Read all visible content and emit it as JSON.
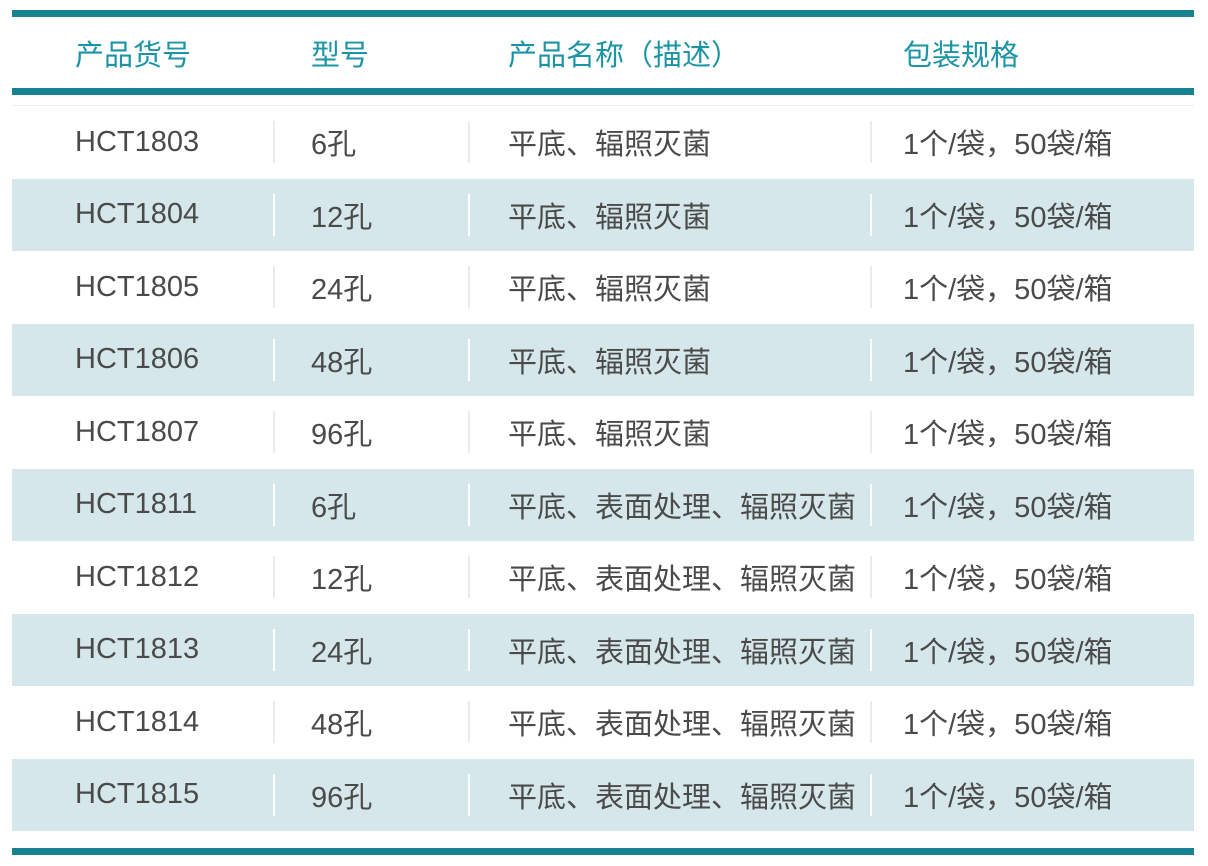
{
  "table": {
    "columns": [
      {
        "key": "catalog",
        "label": "产品货号"
      },
      {
        "key": "model",
        "label": "型号"
      },
      {
        "key": "description",
        "label": "产品名称（描述）"
      },
      {
        "key": "packaging",
        "label": "包装规格"
      }
    ],
    "rows": [
      {
        "catalog": "HCT1803",
        "model": "6孔",
        "description": "平底、辐照灭菌",
        "packaging": "1个/袋，50袋/箱"
      },
      {
        "catalog": "HCT1804",
        "model": "12孔",
        "description": "平底、辐照灭菌",
        "packaging": "1个/袋，50袋/箱"
      },
      {
        "catalog": "HCT1805",
        "model": "24孔",
        "description": "平底、辐照灭菌",
        "packaging": "1个/袋，50袋/箱"
      },
      {
        "catalog": "HCT1806",
        "model": "48孔",
        "description": "平底、辐照灭菌",
        "packaging": "1个/袋，50袋/箱"
      },
      {
        "catalog": "HCT1807",
        "model": "96孔",
        "description": "平底、辐照灭菌",
        "packaging": "1个/袋，50袋/箱"
      },
      {
        "catalog": "HCT1811",
        "model": "6孔",
        "description": "平底、表面处理、辐照灭菌",
        "packaging": "1个/袋，50袋/箱"
      },
      {
        "catalog": "HCT1812",
        "model": "12孔",
        "description": "平底、表面处理、辐照灭菌",
        "packaging": "1个/袋，50袋/箱"
      },
      {
        "catalog": "HCT1813",
        "model": "24孔",
        "description": "平底、表面处理、辐照灭菌",
        "packaging": "1个/袋，50袋/箱"
      },
      {
        "catalog": "HCT1814",
        "model": "48孔",
        "description": "平底、表面处理、辐照灭菌",
        "packaging": "1个/袋，50袋/箱"
      },
      {
        "catalog": "HCT1815",
        "model": "96孔",
        "description": "平底、表面处理、辐照灭菌",
        "packaging": "1个/袋，50袋/箱"
      }
    ],
    "colors": {
      "accent_bar": "#17828F",
      "header_text": "#1B94A6",
      "row_alt_bg": "#D5E7EA",
      "body_text": "#4A4A4A",
      "divider": "#EBEBEB"
    }
  }
}
